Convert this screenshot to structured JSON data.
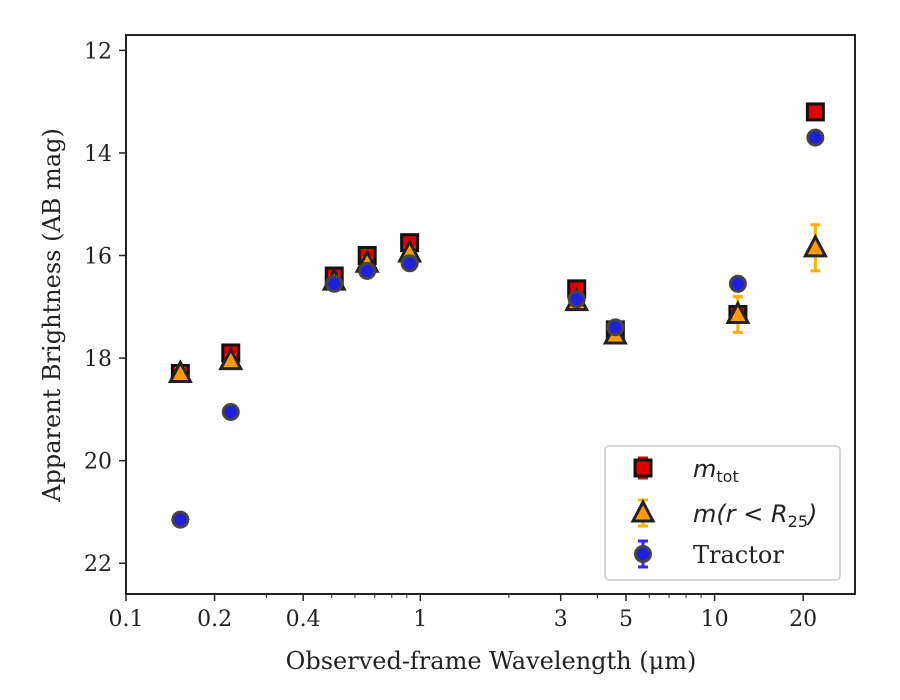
{
  "chart_data": {
    "type": "scatter",
    "xlabel": "Observed-frame Wavelength (μm)",
    "ylabel": "Apparent Brightness (AB mag)",
    "x_scale": "log",
    "xlim": [
      0.1,
      30
    ],
    "ylim": [
      22.6,
      11.7
    ],
    "y_inverted": true,
    "x_ticks": [
      0.1,
      0.2,
      0.4,
      1,
      3,
      5,
      10,
      20
    ],
    "x_tick_labels": [
      "0.1",
      "0.2",
      "0.4",
      "1",
      "3",
      "5",
      "10",
      "20"
    ],
    "y_ticks": [
      12,
      14,
      16,
      18,
      20,
      22
    ],
    "y_tick_labels": [
      "12",
      "14",
      "16",
      "18",
      "20",
      "22"
    ],
    "grid": false,
    "legend_position": "bottom-right",
    "series": [
      {
        "name": "m_tot",
        "marker": "square",
        "color": "#e00000",
        "errcolor": "#e00000",
        "points": [
          {
            "x": 0.153,
            "y": 18.3,
            "err": 0.1
          },
          {
            "x": 0.227,
            "y": 17.9,
            "err": 0.1
          },
          {
            "x": 0.51,
            "y": 16.4,
            "err": 0.1
          },
          {
            "x": 0.66,
            "y": 16.0,
            "err": 0.1
          },
          {
            "x": 0.92,
            "y": 15.75,
            "err": 0.1
          },
          {
            "x": 3.4,
            "y": 16.65,
            "err": 0.1
          },
          {
            "x": 4.6,
            "y": 17.45,
            "err": 0.1
          },
          {
            "x": 12.0,
            "y": 17.15,
            "err": 0.1
          },
          {
            "x": 22.0,
            "y": 13.2,
            "err": 0.1
          }
        ]
      },
      {
        "name": "m(r < R25)",
        "marker": "triangle",
        "color": "#ff9a00",
        "errcolor": "#ffb000",
        "points": [
          {
            "x": 0.153,
            "y": 18.3,
            "err": 0.1
          },
          {
            "x": 0.227,
            "y": 18.05,
            "err": 0.1
          },
          {
            "x": 0.51,
            "y": 16.5,
            "err": 0.1
          },
          {
            "x": 0.66,
            "y": 16.15,
            "err": 0.1
          },
          {
            "x": 0.92,
            "y": 15.95,
            "err": 0.1
          },
          {
            "x": 3.4,
            "y": 16.9,
            "err": 0.1
          },
          {
            "x": 4.6,
            "y": 17.55,
            "err": 0.1
          },
          {
            "x": 12.0,
            "y": 17.15,
            "err": 0.35
          },
          {
            "x": 22.0,
            "y": 15.85,
            "err": 0.45
          }
        ]
      },
      {
        "name": "Tractor",
        "marker": "circle",
        "color": "#1f1fe0",
        "errcolor": "#2a2aff",
        "points": [
          {
            "x": 0.153,
            "y": 21.15,
            "err": 0.05
          },
          {
            "x": 0.227,
            "y": 19.05,
            "err": 0.05
          },
          {
            "x": 0.51,
            "y": 16.55,
            "err": 0.05
          },
          {
            "x": 0.66,
            "y": 16.3,
            "err": 0.05
          },
          {
            "x": 0.92,
            "y": 16.15,
            "err": 0.05
          },
          {
            "x": 3.4,
            "y": 16.85,
            "err": 0.05
          },
          {
            "x": 4.6,
            "y": 17.4,
            "err": 0.05
          },
          {
            "x": 12.0,
            "y": 16.55,
            "err": 0.05
          },
          {
            "x": 22.0,
            "y": 13.7,
            "err": 0.05
          }
        ]
      }
    ]
  },
  "legend": {
    "items": [
      {
        "symbol": "m",
        "sub": "tot",
        "suffix": ""
      },
      {
        "symbol": "m(r < R",
        "sub": "25",
        "suffix": ")"
      },
      {
        "label": "Tractor"
      }
    ]
  }
}
